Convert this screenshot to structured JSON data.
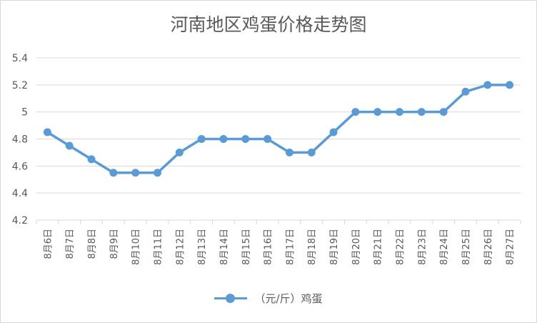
{
  "chart_data": {
    "type": "line",
    "title": "河南地区鸡蛋价格走势图",
    "categories": [
      "8月6日",
      "8月7日",
      "8月8日",
      "8月9日",
      "8月10日",
      "8月11日",
      "8月12日",
      "8月13日",
      "8月14日",
      "8月15日",
      "8月16日",
      "8月17日",
      "8月18日",
      "8月19日",
      "8月20日",
      "8月21日",
      "8月22日",
      "8月23日",
      "8月24日",
      "8月25日",
      "8月26日",
      "8月27日"
    ],
    "series": [
      {
        "name": "（元/斤）鸡蛋",
        "values": [
          4.85,
          4.75,
          4.65,
          4.55,
          4.55,
          4.55,
          4.7,
          4.8,
          4.8,
          4.8,
          4.8,
          4.7,
          4.7,
          4.85,
          5.0,
          5.0,
          5.0,
          5.0,
          5.0,
          5.15,
          5.2,
          5.2
        ]
      }
    ],
    "ylim": [
      4.2,
      5.4
    ],
    "yticks": [
      "4.2",
      "4.4",
      "4.6",
      "4.8",
      "5",
      "5.2",
      "5.4"
    ],
    "grid": true,
    "legend_position": "bottom",
    "line_color": "#5b9bd5"
  }
}
